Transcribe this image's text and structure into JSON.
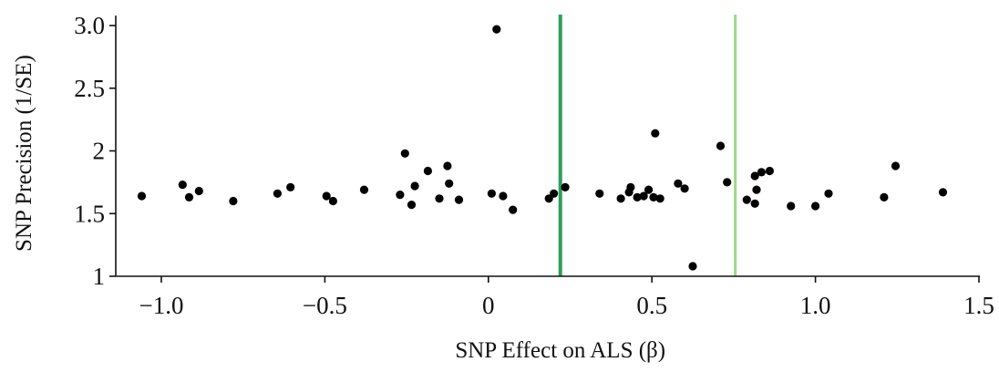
{
  "chart_data": {
    "type": "scatter",
    "title": "",
    "xlabel": "SNP Effect on ALS (β)",
    "ylabel": "SNP Precision (1/SE)",
    "xlim": [
      -1.2,
      1.5
    ],
    "ylim": [
      1.0,
      3.05
    ],
    "x_ticks": [
      {
        "value": -1.0,
        "label": "−1.0"
      },
      {
        "value": -0.5,
        "label": "−0.5"
      },
      {
        "value": 0.0,
        "label": "0"
      },
      {
        "value": 0.5,
        "label": "0.5"
      },
      {
        "value": 1.0,
        "label": "1.0"
      },
      {
        "value": 1.5,
        "label": "1.5"
      }
    ],
    "y_ticks": [
      {
        "value": 1.0,
        "label": "1"
      },
      {
        "value": 1.5,
        "label": "1.5"
      },
      {
        "value": 2.0,
        "label": "2"
      },
      {
        "value": 2.5,
        "label": "2.5"
      },
      {
        "value": 3.0,
        "label": "3.0"
      }
    ],
    "grid": false,
    "point_color": "#000000",
    "reference_lines": [
      {
        "x": 0.22,
        "color": "#2e9e5b"
      },
      {
        "x": 0.755,
        "color": "#99d98c"
      }
    ],
    "points": [
      {
        "x": -1.06,
        "y": 1.64
      },
      {
        "x": -0.935,
        "y": 1.73
      },
      {
        "x": -0.915,
        "y": 1.63
      },
      {
        "x": -0.885,
        "y": 1.68
      },
      {
        "x": -0.78,
        "y": 1.6
      },
      {
        "x": -0.645,
        "y": 1.66
      },
      {
        "x": -0.605,
        "y": 1.71
      },
      {
        "x": -0.495,
        "y": 1.64
      },
      {
        "x": -0.475,
        "y": 1.6
      },
      {
        "x": -0.38,
        "y": 1.69
      },
      {
        "x": -0.27,
        "y": 1.65
      },
      {
        "x": -0.255,
        "y": 1.98
      },
      {
        "x": -0.235,
        "y": 1.57
      },
      {
        "x": -0.225,
        "y": 1.72
      },
      {
        "x": -0.185,
        "y": 1.84
      },
      {
        "x": -0.15,
        "y": 1.62
      },
      {
        "x": -0.125,
        "y": 1.88
      },
      {
        "x": -0.12,
        "y": 1.74
      },
      {
        "x": -0.09,
        "y": 1.61
      },
      {
        "x": 0.01,
        "y": 1.66
      },
      {
        "x": 0.025,
        "y": 2.97
      },
      {
        "x": 0.045,
        "y": 1.64
      },
      {
        "x": 0.075,
        "y": 1.53
      },
      {
        "x": 0.185,
        "y": 1.62
      },
      {
        "x": 0.2,
        "y": 1.66
      },
      {
        "x": 0.235,
        "y": 1.71
      },
      {
        "x": 0.34,
        "y": 1.66
      },
      {
        "x": 0.405,
        "y": 1.62
      },
      {
        "x": 0.43,
        "y": 1.67
      },
      {
        "x": 0.435,
        "y": 1.71
      },
      {
        "x": 0.455,
        "y": 1.63
      },
      {
        "x": 0.475,
        "y": 1.64
      },
      {
        "x": 0.49,
        "y": 1.69
      },
      {
        "x": 0.505,
        "y": 1.63
      },
      {
        "x": 0.51,
        "y": 2.14
      },
      {
        "x": 0.525,
        "y": 1.62
      },
      {
        "x": 0.58,
        "y": 1.74
      },
      {
        "x": 0.6,
        "y": 1.7
      },
      {
        "x": 0.625,
        "y": 1.08
      },
      {
        "x": 0.71,
        "y": 2.04
      },
      {
        "x": 0.73,
        "y": 1.75
      },
      {
        "x": 0.79,
        "y": 1.61
      },
      {
        "x": 0.815,
        "y": 1.58
      },
      {
        "x": 0.815,
        "y": 1.8
      },
      {
        "x": 0.82,
        "y": 1.69
      },
      {
        "x": 0.835,
        "y": 1.83
      },
      {
        "x": 0.86,
        "y": 1.84
      },
      {
        "x": 0.925,
        "y": 1.56
      },
      {
        "x": 1.0,
        "y": 1.56
      },
      {
        "x": 1.04,
        "y": 1.66
      },
      {
        "x": 1.21,
        "y": 1.63
      },
      {
        "x": 1.245,
        "y": 1.88
      },
      {
        "x": 1.39,
        "y": 1.67
      }
    ]
  }
}
